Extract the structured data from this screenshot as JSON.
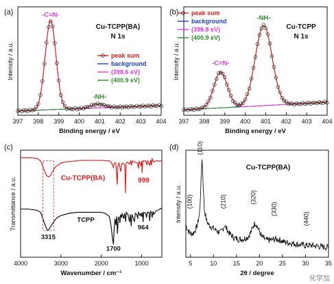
{
  "chart_data": [
    {
      "panel": "(a)",
      "type": "line",
      "annotation": "Cu-TCPP(BA)\nN 1s",
      "xlabel": "Binding energy / eV",
      "ylabel": "Intensity / a.u.",
      "xlim": [
        397,
        404
      ],
      "x_ticks": [
        "397",
        "398",
        "399",
        "400",
        "401",
        "402",
        "403",
        "404"
      ],
      "x_axis_reversed": false,
      "legend": {
        "position": "right",
        "entries": [
          {
            "name": "peak sum",
            "color": "#d6211f"
          },
          {
            "name": "background",
            "color": "#1f3fbf"
          },
          {
            "name": "(398.6 eV)",
            "color": "#e03ad6"
          },
          {
            "name": "(400.9 eV)",
            "color": "#2e8b2e"
          }
        ]
      },
      "peak_labels": [
        {
          "text": "-C=N-",
          "x": 398.6,
          "color": "#e03ad6"
        },
        {
          "text": "-NH-",
          "x": 401.0,
          "color": "#2e8b2e"
        }
      ],
      "background": {
        "start": 0.04,
        "end": 0.09
      },
      "peaks": [
        {
          "center": 398.6,
          "height": 0.82,
          "width": 0.44,
          "color": "#e03ad6"
        },
        {
          "center": 400.9,
          "height": 0.035,
          "width": 0.55,
          "color": "#2e8b2e"
        }
      ],
      "ylim": [
        0,
        1
      ],
      "data_points": {
        "start": 397.0,
        "end": 404.0,
        "step": 0.1
      }
    },
    {
      "panel": "(b)",
      "type": "line",
      "annotation": "Cu-TCPP\nN 1s",
      "xlabel": "Binding energy / eV",
      "ylabel": "Intensity / a.u.",
      "xlim": [
        397,
        404
      ],
      "x_ticks": [
        "397",
        "398",
        "399",
        "400",
        "401",
        "402",
        "403",
        "404"
      ],
      "x_axis_reversed": false,
      "legend": {
        "position": "top-left",
        "entries": [
          {
            "name": "peak sum",
            "color": "#d6211f"
          },
          {
            "name": "background",
            "color": "#1f3fbf"
          },
          {
            "name": "(398.8 eV)",
            "color": "#e03ad6"
          },
          {
            "name": "(400.9 eV)",
            "color": "#2e8b2e"
          }
        ]
      },
      "peak_labels": [
        {
          "text": "-C=N-",
          "x": 398.8,
          "color": "#e03ad6"
        },
        {
          "text": "-NH-",
          "x": 400.9,
          "color": "#2e8b2e"
        }
      ],
      "background": {
        "start": 0.05,
        "end": 0.12
      },
      "peaks": [
        {
          "center": 398.8,
          "height": 0.33,
          "width": 0.55,
          "color": "#e03ad6"
        },
        {
          "center": 400.9,
          "height": 0.74,
          "width": 0.68,
          "color": "#2e8b2e"
        }
      ],
      "ylim": [
        0,
        1
      ],
      "data_points": {
        "start": 397.0,
        "end": 404.0,
        "step": 0.1
      }
    },
    {
      "panel": "(c)",
      "type": "line",
      "xlabel": "Wavenumber / cm⁻¹",
      "ylabel": "Transmittance / a.u.",
      "xlim": [
        4000,
        500
      ],
      "x_ticks": [
        "4000",
        "3000",
        "2000",
        "1000"
      ],
      "x_axis_reversed": true,
      "series": [
        {
          "name": "Cu-TCPP(BA)",
          "color": "#d6211f",
          "points": [
            [
              4000,
              0.93
            ],
            [
              3800,
              0.93
            ],
            [
              3600,
              0.925
            ],
            [
              3500,
              0.9
            ],
            [
              3420,
              0.82
            ],
            [
              3350,
              0.76
            ],
            [
              3300,
              0.75
            ],
            [
              3250,
              0.77
            ],
            [
              3150,
              0.84
            ],
            [
              3000,
              0.88
            ],
            [
              2900,
              0.89
            ],
            [
              2500,
              0.905
            ],
            [
              2000,
              0.905
            ],
            [
              1800,
              0.9
            ],
            [
              1750,
              0.885
            ],
            [
              1700,
              0.84
            ],
            [
              1680,
              0.88
            ],
            [
              1640,
              0.88
            ],
            [
              1620,
              0.76
            ],
            [
              1605,
              0.68
            ],
            [
              1590,
              0.85
            ],
            [
              1560,
              0.88
            ],
            [
              1520,
              0.8
            ],
            [
              1500,
              0.86
            ],
            [
              1480,
              0.88
            ],
            [
              1440,
              0.87
            ],
            [
              1420,
              0.86
            ],
            [
              1400,
              0.6
            ],
            [
              1385,
              0.88
            ],
            [
              1350,
              0.89
            ],
            [
              1300,
              0.87
            ],
            [
              1270,
              0.9
            ],
            [
              1250,
              0.86
            ],
            [
              1230,
              0.9
            ],
            [
              1180,
              0.89
            ],
            [
              1100,
              0.88
            ],
            [
              1080,
              0.83
            ],
            [
              1060,
              0.9
            ],
            [
              1020,
              0.86
            ],
            [
              1000,
              0.9
            ],
            [
              990,
              0.79
            ],
            [
              970,
              0.9
            ],
            [
              900,
              0.9
            ],
            [
              870,
              0.86
            ],
            [
              850,
              0.9
            ],
            [
              800,
              0.86
            ],
            [
              780,
              0.91
            ],
            [
              760,
              0.86
            ],
            [
              740,
              0.92
            ],
            [
              700,
              0.89
            ],
            [
              650,
              0.9
            ],
            [
              500,
              0.9
            ]
          ]
        },
        {
          "name": "TCPP",
          "color": "#111111",
          "points": [
            [
              4000,
              0.45
            ],
            [
              3800,
              0.45
            ],
            [
              3600,
              0.44
            ],
            [
              3500,
              0.42
            ],
            [
              3420,
              0.33
            ],
            [
              3350,
              0.26
            ],
            [
              3315,
              0.25
            ],
            [
              3280,
              0.27
            ],
            [
              3200,
              0.32
            ],
            [
              3100,
              0.37
            ],
            [
              3000,
              0.39
            ],
            [
              2800,
              0.41
            ],
            [
              2600,
              0.42
            ],
            [
              2400,
              0.42
            ],
            [
              2200,
              0.42
            ],
            [
              2000,
              0.42
            ],
            [
              1900,
              0.41
            ],
            [
              1800,
              0.38
            ],
            [
              1760,
              0.3
            ],
            [
              1720,
              0.17
            ],
            [
              1700,
              0.12
            ],
            [
              1685,
              0.25
            ],
            [
              1660,
              0.36
            ],
            [
              1640,
              0.3
            ],
            [
              1620,
              0.38
            ],
            [
              1600,
              0.22
            ],
            [
              1580,
              0.36
            ],
            [
              1560,
              0.38
            ],
            [
              1540,
              0.32
            ],
            [
              1520,
              0.4
            ],
            [
              1500,
              0.37
            ],
            [
              1480,
              0.41
            ],
            [
              1450,
              0.36
            ],
            [
              1420,
              0.41
            ],
            [
              1400,
              0.33
            ],
            [
              1380,
              0.42
            ],
            [
              1340,
              0.4
            ],
            [
              1300,
              0.33
            ],
            [
              1280,
              0.4
            ],
            [
              1260,
              0.29
            ],
            [
              1240,
              0.4
            ],
            [
              1220,
              0.38
            ],
            [
              1180,
              0.33
            ],
            [
              1160,
              0.41
            ],
            [
              1120,
              0.4
            ],
            [
              1100,
              0.36
            ],
            [
              1080,
              0.42
            ],
            [
              1040,
              0.39
            ],
            [
              1020,
              0.41
            ],
            [
              1000,
              0.38
            ],
            [
              980,
              0.42
            ],
            [
              964,
              0.33
            ],
            [
              950,
              0.42
            ],
            [
              900,
              0.41
            ],
            [
              880,
              0.37
            ],
            [
              860,
              0.42
            ],
            [
              820,
              0.42
            ],
            [
              800,
              0.34
            ],
            [
              780,
              0.43
            ],
            [
              760,
              0.42
            ],
            [
              740,
              0.37
            ],
            [
              720,
              0.43
            ],
            [
              700,
              0.4
            ],
            [
              650,
              0.43
            ],
            [
              600,
              0.44
            ],
            [
              500,
              0.46
            ]
          ]
        }
      ],
      "annotations": [
        {
          "text": "Cu-TCPP(BA)",
          "color": "#d6211f"
        },
        {
          "text": "999",
          "color": "#d6211f"
        },
        {
          "text": "TCPP",
          "color": "#111111"
        },
        {
          "text": "3315",
          "color": "#111111"
        },
        {
          "text": "1700",
          "color": "#111111"
        },
        {
          "text": "964",
          "color": "#111111"
        }
      ],
      "highlight_box": {
        "x_range": [
          3450,
          3180
        ],
        "color": "#d6211f",
        "style": "dashed"
      }
    },
    {
      "panel": "(d)",
      "type": "line",
      "annotation": "Cu-TCPP(BA)",
      "xlabel": "2θ / degree",
      "ylabel": "Intensity / a.u.",
      "xlim": [
        4,
        35
      ],
      "x_ticks": [
        "5",
        "10",
        "15",
        "20",
        "25",
        "30",
        "35"
      ],
      "x_axis_reversed": false,
      "series": [
        {
          "name": "Cu-TCPP(BA)",
          "color": "#111111",
          "points": [
            [
              4,
              0.3
            ],
            [
              4.5,
              0.25
            ],
            [
              5,
              0.22
            ],
            [
              5.5,
              0.22
            ],
            [
              6,
              0.25
            ],
            [
              6.5,
              0.3
            ],
            [
              7,
              0.42
            ],
            [
              7.3,
              0.7
            ],
            [
              7.5,
              0.93
            ],
            [
              7.7,
              0.75
            ],
            [
              8,
              0.45
            ],
            [
              8.5,
              0.34
            ],
            [
              9,
              0.3
            ],
            [
              10,
              0.27
            ],
            [
              11,
              0.24
            ],
            [
              11.5,
              0.23
            ],
            [
              12,
              0.26
            ],
            [
              12.4,
              0.3
            ],
            [
              12.8,
              0.27
            ],
            [
              13.5,
              0.22
            ],
            [
              14.5,
              0.18
            ],
            [
              15.5,
              0.17
            ],
            [
              16.5,
              0.17
            ],
            [
              17.5,
              0.19
            ],
            [
              18.2,
              0.24
            ],
            [
              18.8,
              0.31
            ],
            [
              19.2,
              0.32
            ],
            [
              19.7,
              0.27
            ],
            [
              20.5,
              0.19
            ],
            [
              21.5,
              0.16
            ],
            [
              22.5,
              0.16
            ],
            [
              23.5,
              0.17
            ],
            [
              24.5,
              0.16
            ],
            [
              25.5,
              0.14
            ],
            [
              27,
              0.13
            ],
            [
              28.5,
              0.12
            ],
            [
              30,
              0.11
            ],
            [
              31.5,
              0.11
            ],
            [
              33,
              0.1
            ],
            [
              35,
              0.09
            ]
          ]
        }
      ],
      "peak_labels": [
        {
          "text": "(100)",
          "x": 5.3
        },
        {
          "text": "(110)",
          "x": 7.5
        },
        {
          "text": "(210)",
          "x": 12.6
        },
        {
          "text": "(320)",
          "x": 19.1
        },
        {
          "text": "(330)",
          "x": 23.6
        },
        {
          "text": "(440)",
          "x": 30.6
        }
      ]
    }
  ],
  "watermark": "化学加"
}
